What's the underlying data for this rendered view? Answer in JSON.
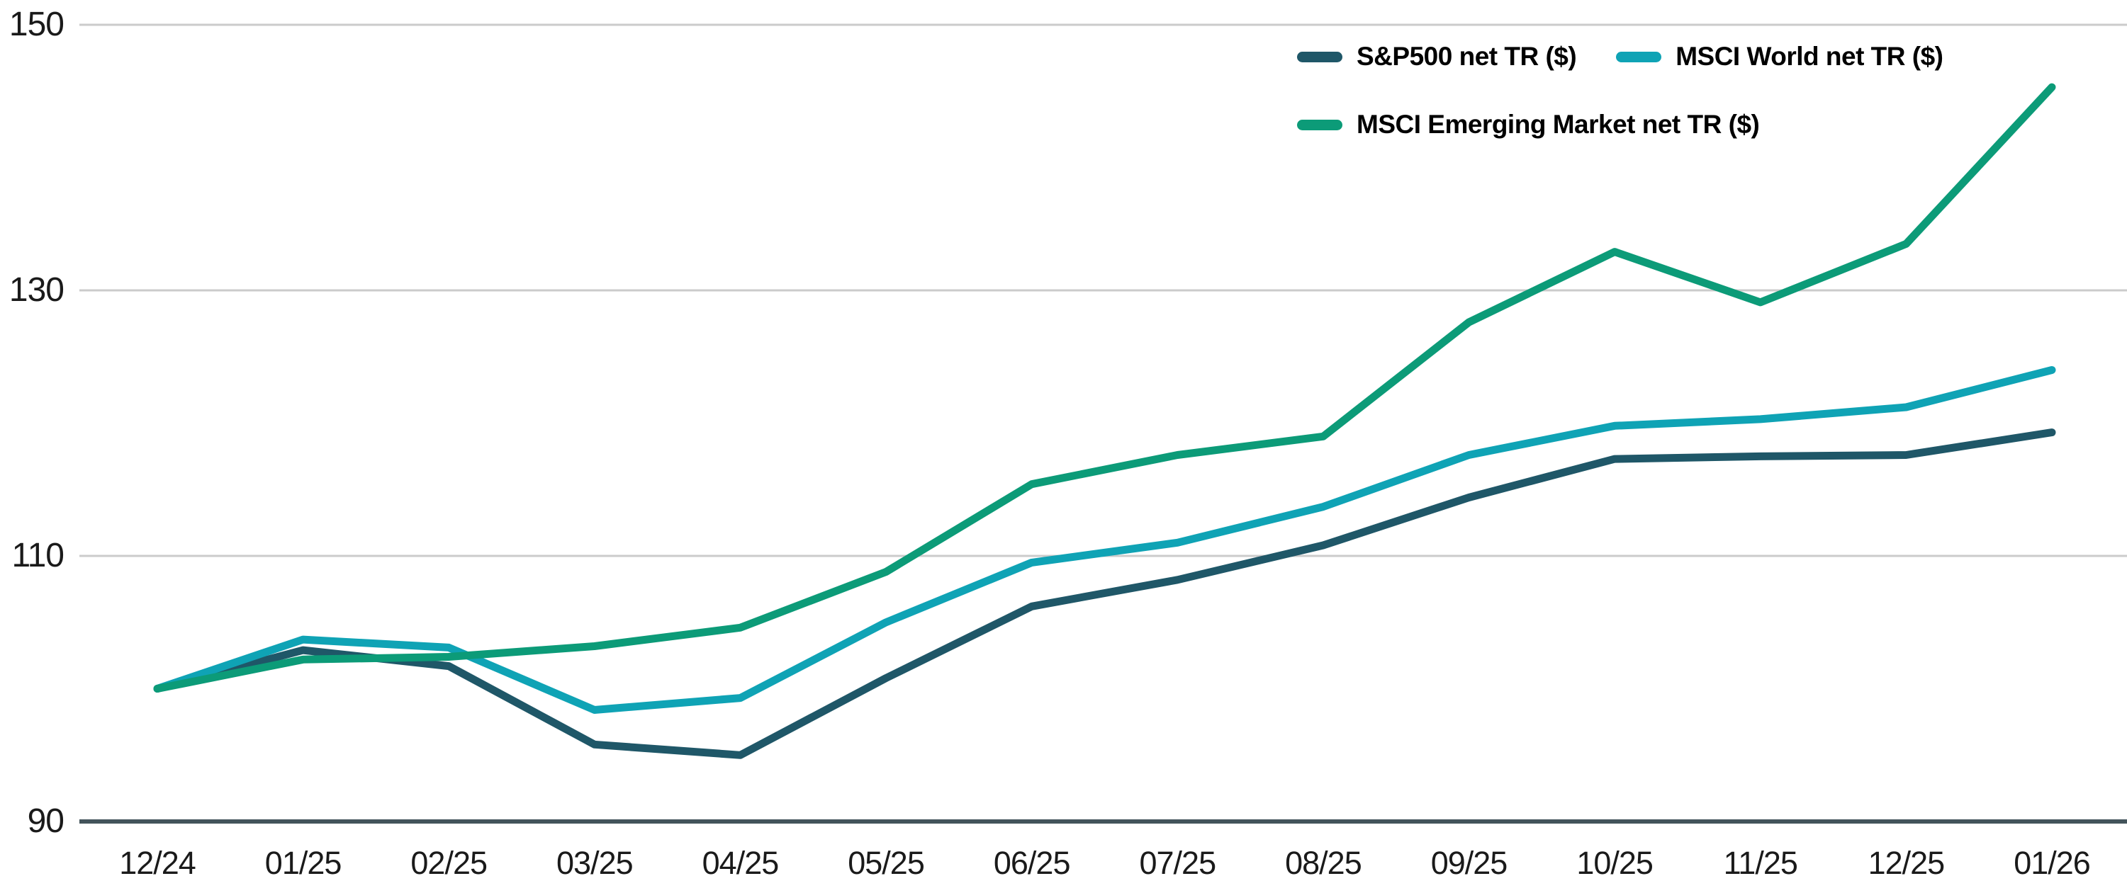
{
  "chart_data": {
    "type": "line",
    "title": "",
    "xlabel": "",
    "ylabel": "",
    "categories": [
      "12/24",
      "01/25",
      "02/25",
      "03/25",
      "04/25",
      "05/25",
      "06/25",
      "07/25",
      "08/25",
      "09/25",
      "10/25",
      "11/25",
      "12/25",
      "01/26"
    ],
    "series": [
      {
        "name": "S&P500 net TR ($)",
        "color": "#1F5768",
        "values": [
          100,
          102.9,
          101.7,
          95.8,
          95.0,
          100.8,
          106.2,
          108.2,
          110.8,
          114.4,
          117.3,
          117.5,
          117.6,
          119.3
        ]
      },
      {
        "name": "MSCI World net TR ($)",
        "color": "#0FA3B5",
        "values": [
          100,
          103.7,
          103.1,
          98.4,
          99.3,
          105.0,
          109.5,
          111.0,
          113.7,
          117.6,
          119.8,
          120.3,
          121.2,
          124.0
        ]
      },
      {
        "name": "MSCI Emerging Market net TR ($)",
        "color": "#0C9B78",
        "values": [
          100,
          102.2,
          102.4,
          103.2,
          104.6,
          108.8,
          115.4,
          117.6,
          119.0,
          127.6,
          132.9,
          129.1,
          133.5,
          145.3
        ]
      }
    ],
    "y_axis": {
      "ticks": [
        150,
        130,
        110,
        90
      ],
      "min": 90,
      "max": 150
    },
    "x_axis": {
      "baseline_value": 90
    },
    "grid": {
      "gridline_color": "#CBCBCB",
      "baseline_color": "#43545B"
    },
    "legend_position": "top-right",
    "index_base_note": "100"
  }
}
